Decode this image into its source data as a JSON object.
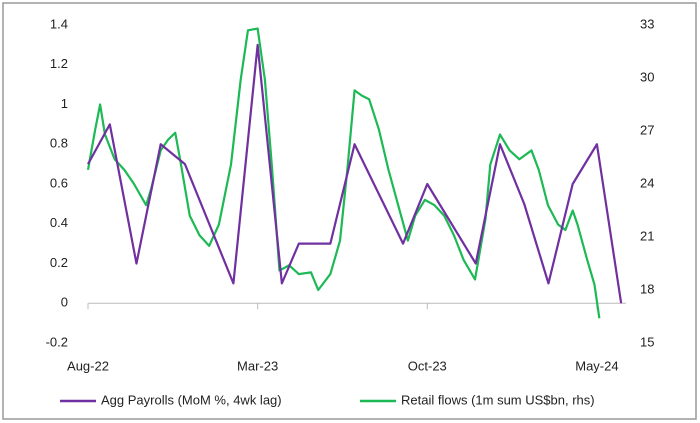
{
  "chart_data": {
    "type": "line",
    "xlim": [
      0,
      22.2
    ],
    "xticks": [
      {
        "value": 0,
        "label": "Aug-22"
      },
      {
        "value": 7,
        "label": "Mar-23"
      },
      {
        "value": 14,
        "label": "Oct-23"
      },
      {
        "value": 21,
        "label": "May-24"
      }
    ],
    "ylim": [
      -0.2,
      1.4
    ],
    "yticks": [
      -0.2,
      0.0,
      0.2,
      0.4,
      0.6,
      0.8,
      1.0,
      1.2,
      1.4
    ],
    "y2lim": [
      15,
      33
    ],
    "y2ticks": [
      15,
      18,
      21,
      24,
      27,
      30,
      33
    ],
    "series": [
      {
        "name": "Agg Payrolls (MoM %, 4wk lag)",
        "color": "#7030a0",
        "x": [
          0,
          0.9,
          2,
          3,
          4,
          6,
          7,
          8,
          8.7,
          10,
          11,
          13,
          14,
          16,
          17,
          18,
          19,
          20,
          21,
          22
        ],
        "values": [
          0.7,
          0.9,
          0.2,
          0.8,
          0.7,
          0.1,
          1.3,
          0.1,
          0.3,
          0.3,
          0.8,
          0.3,
          0.6,
          0.2,
          0.8,
          0.5,
          0.1,
          0.6,
          0.8,
          0.0
        ]
      },
      {
        "name": "Retail flows (1m sum US$bn, rhs)",
        "color": "#1db954",
        "axis": "y2",
        "x": [
          0,
          0.3,
          0.5,
          0.7,
          1.1,
          1.5,
          1.9,
          2.4,
          2.6,
          3.0,
          3.3,
          3.6,
          3.8,
          4.2,
          4.6,
          5.0,
          5.4,
          5.9,
          6.3,
          6.6,
          7.0,
          7.3,
          7.6,
          7.9,
          8.3,
          8.7,
          9.2,
          9.5,
          10.0,
          10.4,
          10.7,
          11.0,
          11.3,
          11.6,
          12.0,
          12.4,
          12.8,
          13.2,
          13.5,
          13.9,
          14.3,
          14.7,
          15.1,
          15.5,
          15.97,
          16.4,
          16.6,
          17.0,
          17.4,
          17.8,
          18.3,
          18.6,
          18.98,
          19.4,
          19.7,
          20.0,
          20.2,
          20.6,
          20.9,
          21.1
        ],
        "values": [
          24.8,
          27.1,
          28.5,
          26.8,
          25.4,
          24.8,
          24.0,
          22.8,
          23.7,
          25.9,
          26.5,
          26.9,
          25.4,
          22.2,
          21.1,
          20.5,
          21.7,
          25.1,
          29.9,
          32.7,
          32.8,
          29.9,
          24.8,
          19.1,
          19.4,
          18.9,
          19.0,
          18.0,
          18.9,
          20.8,
          24.8,
          29.3,
          29.0,
          28.8,
          27.1,
          24.8,
          22.8,
          20.8,
          22.2,
          23.1,
          22.8,
          22.2,
          21.1,
          19.7,
          18.6,
          22.0,
          25.1,
          26.8,
          25.9,
          25.4,
          25.9,
          24.8,
          22.8,
          21.7,
          21.4,
          22.5,
          21.7,
          19.7,
          18.3,
          16.4
        ]
      }
    ]
  }
}
